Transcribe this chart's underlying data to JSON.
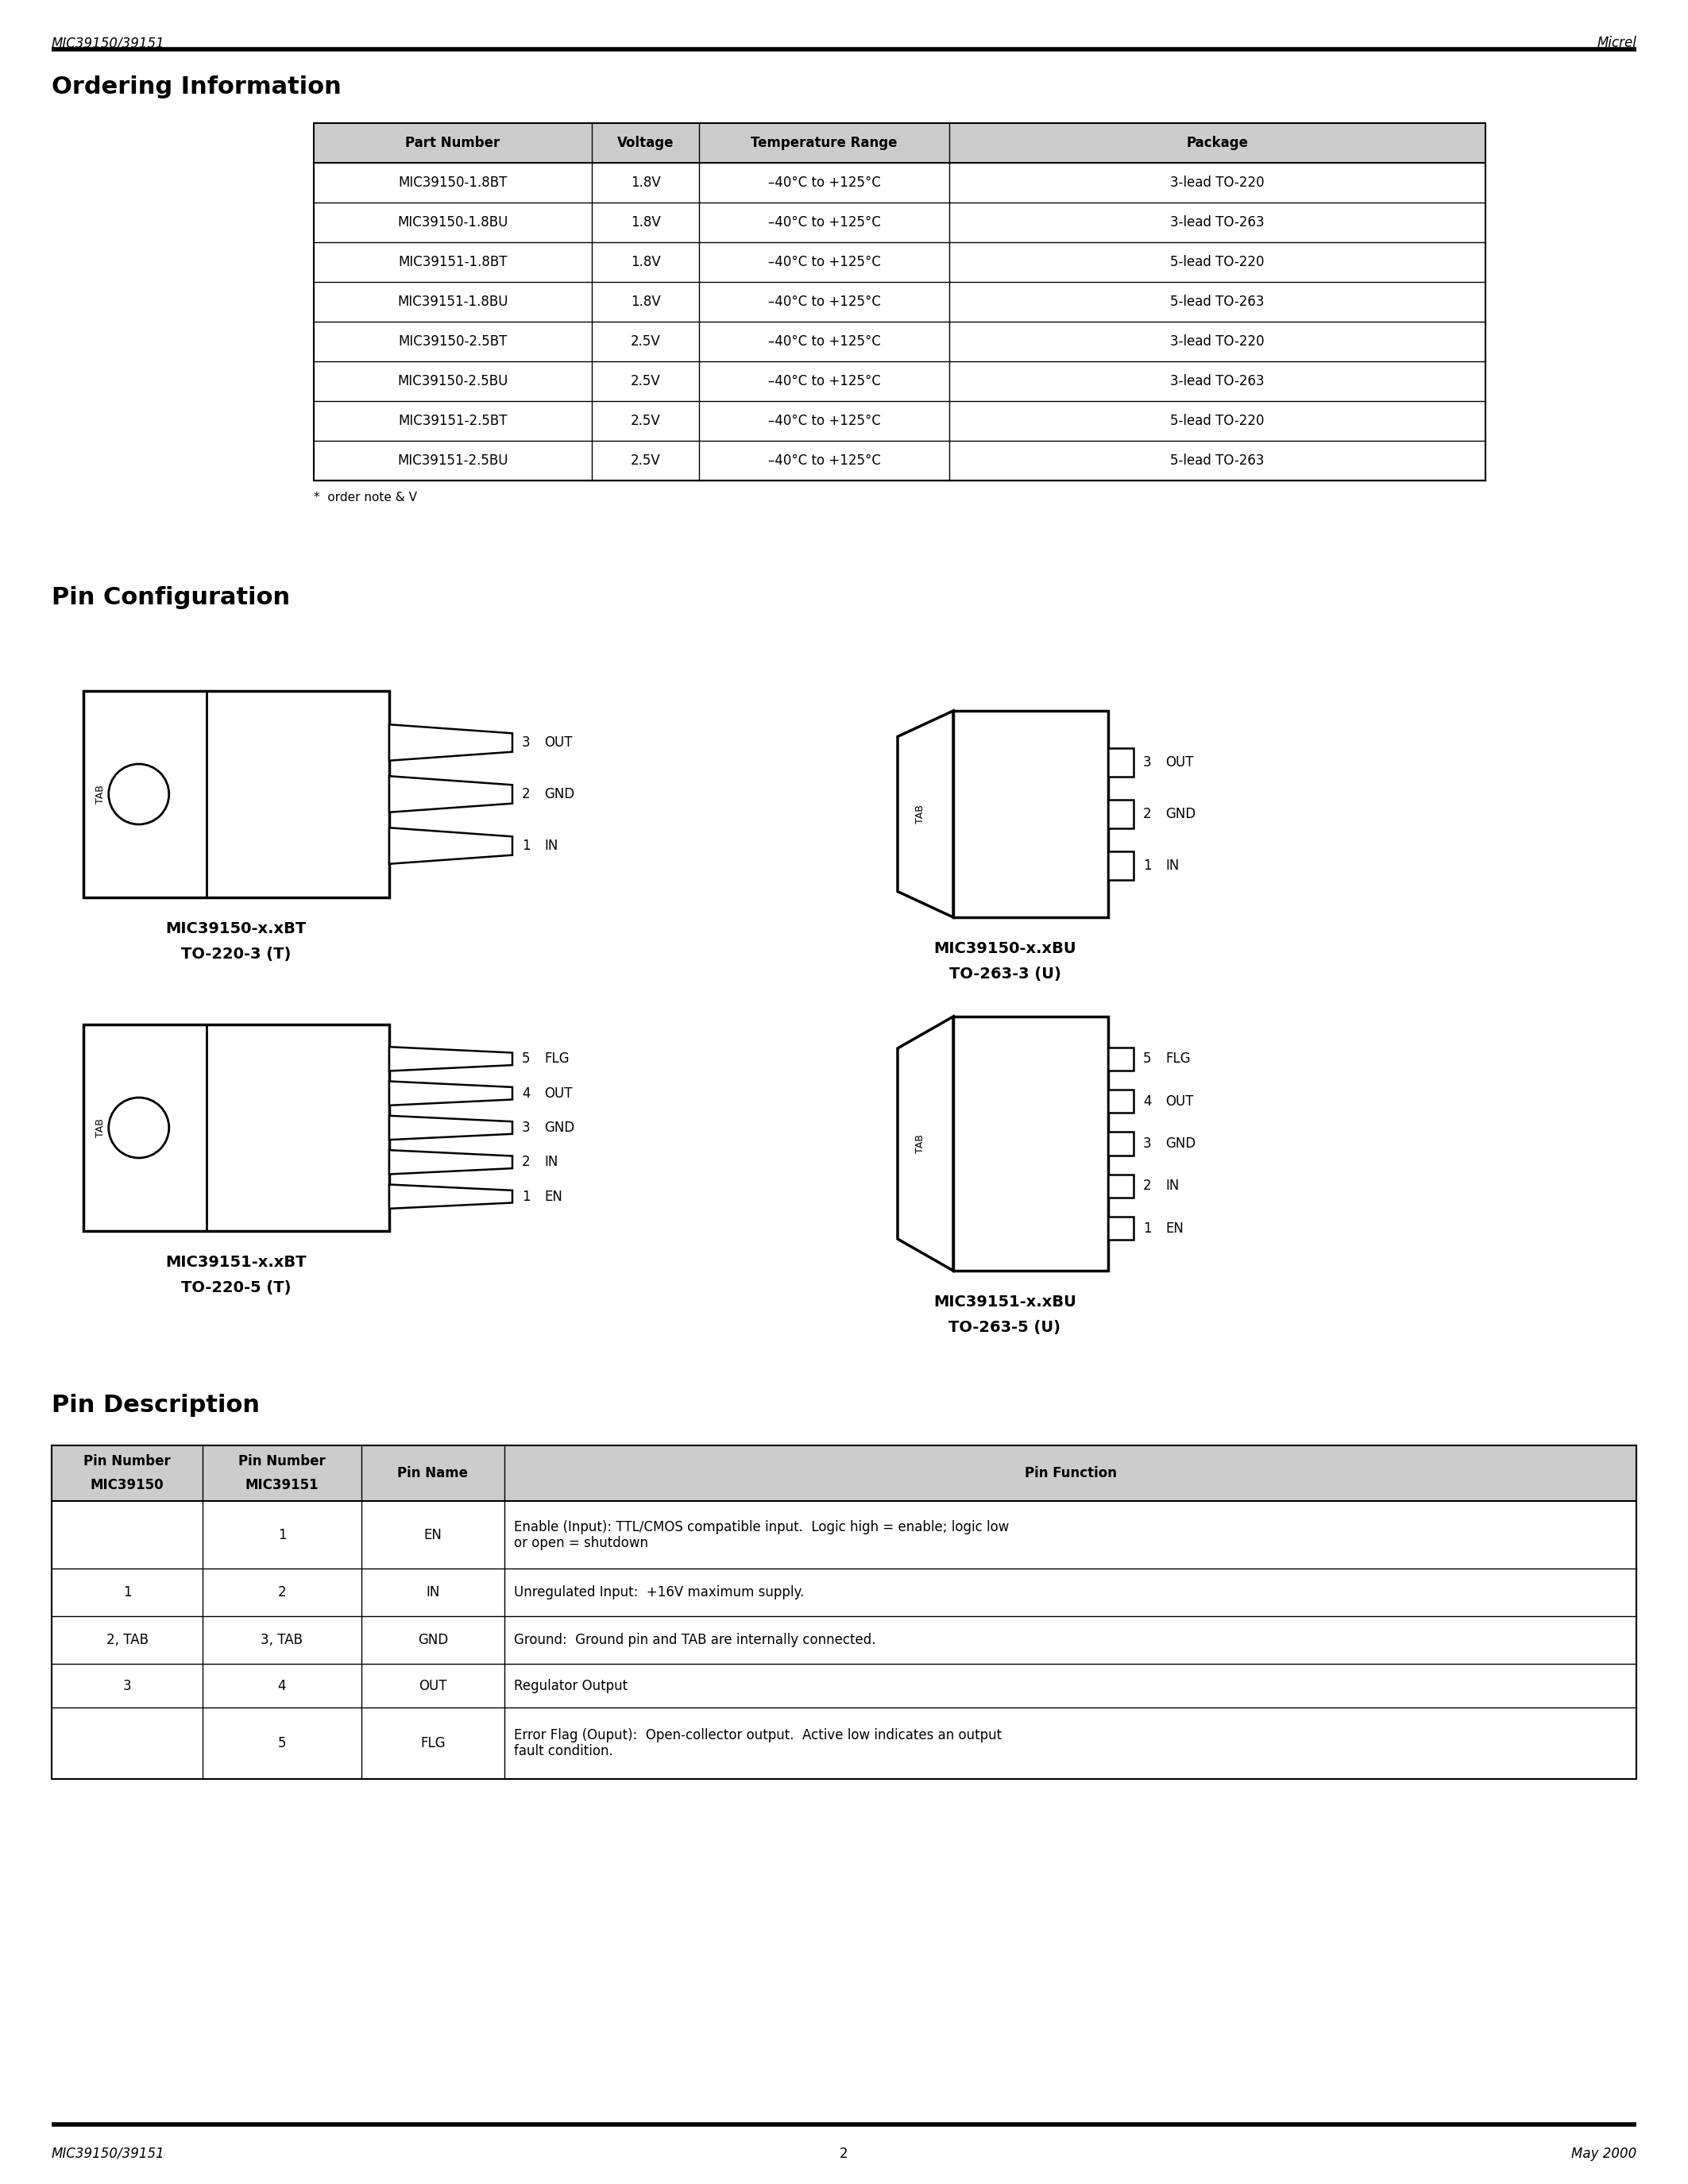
{
  "page_title_left": "MIC39150/39151",
  "page_title_right": "Micrel",
  "footer_left": "MIC39150/39151",
  "footer_center": "2",
  "footer_right": "May 2000",
  "section1_title": "Ordering Information",
  "ordering_headers": [
    "Part Number",
    "Voltage",
    "Temperature Range",
    "Package"
  ],
  "ordering_rows": [
    [
      "MIC39150-1.8BT",
      "1.8V",
      "–40°C to +125°C",
      "3-lead TO-220"
    ],
    [
      "MIC39150-1.8BU",
      "1.8V",
      "–40°C to +125°C",
      "3-lead TO-263"
    ],
    [
      "MIC39151-1.8BT",
      "1.8V",
      "–40°C to +125°C",
      "5-lead TO-220"
    ],
    [
      "MIC39151-1.8BU",
      "1.8V",
      "–40°C to +125°C",
      "5-lead TO-263"
    ],
    [
      "MIC39150-2.5BT",
      "2.5V",
      "–40°C to +125°C",
      "3-lead TO-220"
    ],
    [
      "MIC39150-2.5BU",
      "2.5V",
      "–40°C to +125°C",
      "3-lead TO-263"
    ],
    [
      "MIC39151-2.5BT",
      "2.5V",
      "–40°C to +125°C",
      "5-lead TO-220"
    ],
    [
      "MIC39151-2.5BU",
      "2.5V",
      "–40°C to +125°C",
      "5-lead TO-263"
    ]
  ],
  "ordering_note": "*  order note & V",
  "section2_title": "Pin Configuration",
  "section3_title": "Pin Description",
  "pin_desc_rows": [
    [
      "",
      "1",
      "EN",
      "Enable (Input): TTL/CMOS compatible input.  Logic high = enable; logic low\nor open = shutdown"
    ],
    [
      "1",
      "2",
      "IN",
      "Unregulated Input:  +16V maximum supply."
    ],
    [
      "2, TAB",
      "3, TAB",
      "GND",
      "Ground:  Ground pin and TAB are internally connected."
    ],
    [
      "3",
      "4",
      "OUT",
      "Regulator Output"
    ],
    [
      "",
      "5",
      "FLG",
      "Error Flag (Ouput):  Open-collector output.  Active low indicates an output\nfault condition."
    ]
  ],
  "bg_color": "#ffffff",
  "text_color": "#000000"
}
